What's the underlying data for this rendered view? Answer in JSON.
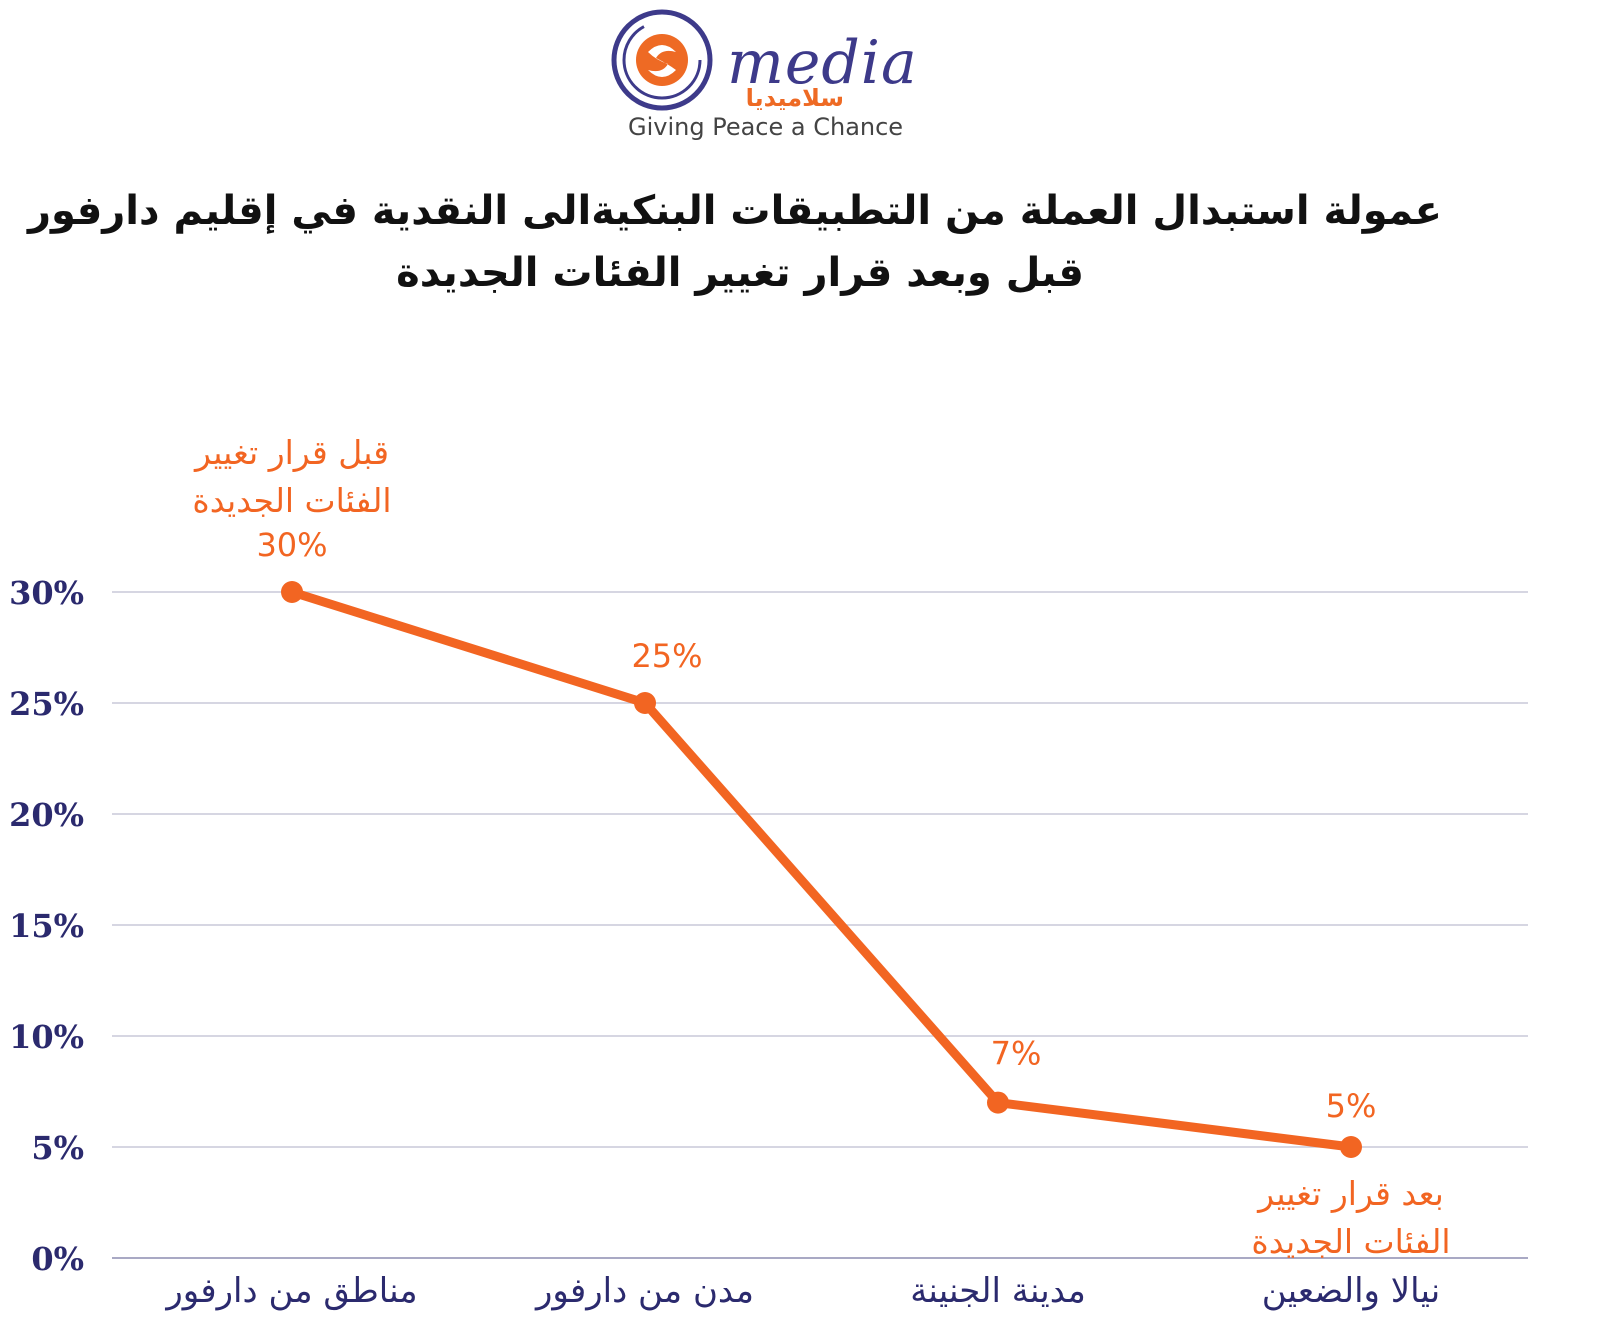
{
  "logo": {
    "word": "media",
    "arabic": "سلاميديا",
    "tagline": "Giving Peace a Chance",
    "colors": {
      "ring": "#3d3a8a",
      "accent": "#ee6a24"
    },
    "icon": "salamedia-swirl-logo"
  },
  "title": {
    "line1": "عمولة استبدال العملة من التطبيقات البنكيةالى النقدية في إقليم دارفور",
    "line2": "قبل وبعد قرار تغيير الفئات الجديدة"
  },
  "chart_data": {
    "type": "line",
    "categories": [
      "مناطق من دارفور",
      "مدن من دارفور",
      "مدينة الجنينة",
      "نيالا والضعين"
    ],
    "values": [
      30,
      25,
      7,
      5
    ],
    "data_labels": [
      "30%",
      "25%",
      "7%",
      "5%"
    ],
    "y_ticks": [
      "0%",
      "5%",
      "10%",
      "15%",
      "20%",
      "25%",
      "30%"
    ],
    "ylim": [
      0,
      30
    ],
    "grid": true,
    "annotations": [
      {
        "point": 0,
        "lines": [
          "قبل قرار تغيير",
          "الفئات الجديدة"
        ],
        "position": "above"
      },
      {
        "point": 3,
        "lines": [
          "بعد قرار تغيير",
          "الفئات الجديدة"
        ],
        "position": "below"
      }
    ],
    "colors": {
      "line": "#f26522",
      "label": "#f26522",
      "axis_text": "#2b2a6e",
      "grid": "#c8c8d8",
      "category_text": "#2b2a6e"
    }
  }
}
